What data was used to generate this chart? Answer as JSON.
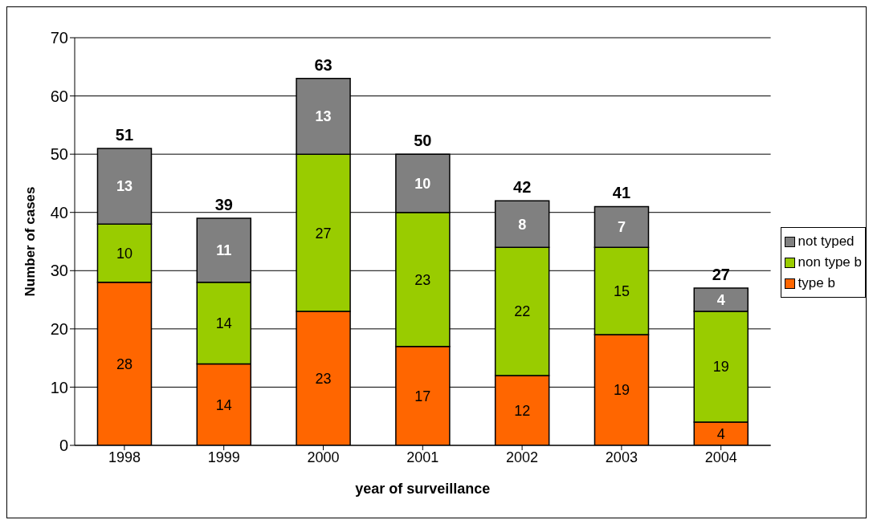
{
  "chart_data": {
    "type": "bar",
    "stacked": true,
    "xlabel": "year of surveillance",
    "ylabel": "Number of cases",
    "categories": [
      "1998",
      "1999",
      "2000",
      "2001",
      "2002",
      "2003",
      "2004"
    ],
    "series": [
      {
        "name": "type b",
        "color": "#ff6600",
        "values": [
          28,
          14,
          23,
          17,
          12,
          19,
          4
        ]
      },
      {
        "name": "non type b",
        "color": "#99cc00",
        "values": [
          10,
          14,
          27,
          23,
          22,
          15,
          19
        ]
      },
      {
        "name": "not typed",
        "color": "#808080",
        "values": [
          13,
          11,
          13,
          10,
          8,
          7,
          4
        ]
      }
    ],
    "totals": [
      "51",
      "39",
      "63",
      "50",
      "42",
      "41",
      "27"
    ],
    "data_labels": true,
    "ylim": [
      0,
      70
    ],
    "yticks": [
      0,
      10,
      20,
      30,
      40,
      50,
      60,
      70
    ],
    "grid": "y",
    "legend": "right"
  }
}
